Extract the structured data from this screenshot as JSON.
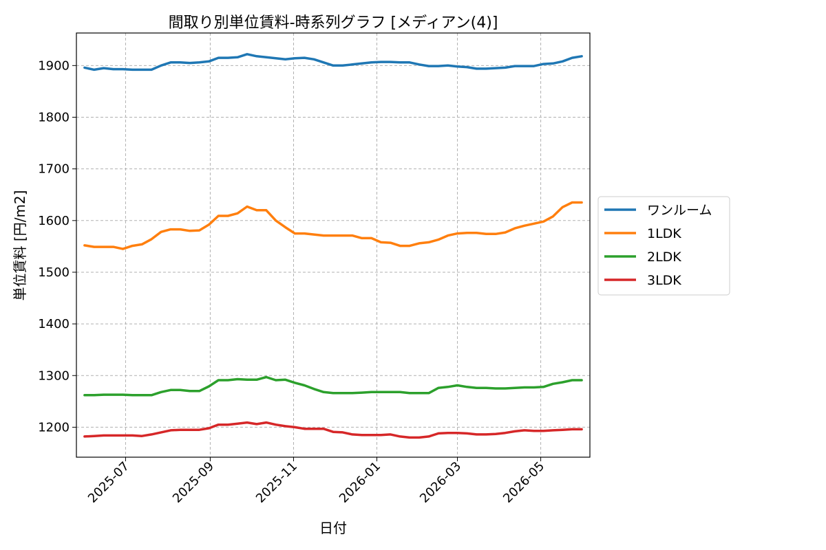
{
  "chart_data": {
    "type": "line",
    "title": "間取り別単位賃料-時系列グラフ [メディアン(4)]",
    "xlabel": "日付",
    "ylabel": "単位賃料 [円/m2]",
    "x": [
      "2025-06-01",
      "2025-06-08",
      "2025-06-15",
      "2025-06-22",
      "2025-06-29",
      "2025-07-06",
      "2025-07-13",
      "2025-07-20",
      "2025-07-27",
      "2025-08-03",
      "2025-08-10",
      "2025-08-17",
      "2025-08-24",
      "2025-08-31",
      "2025-09-07",
      "2025-09-14",
      "2025-09-21",
      "2025-09-28",
      "2025-10-05",
      "2025-10-12",
      "2025-10-19",
      "2025-10-26",
      "2025-11-02",
      "2025-11-09",
      "2025-11-16",
      "2025-11-23",
      "2025-11-30",
      "2025-12-07",
      "2025-12-14",
      "2025-12-21",
      "2025-12-28",
      "2026-01-04",
      "2026-01-11",
      "2026-01-18",
      "2026-01-25",
      "2026-02-01",
      "2026-02-08",
      "2026-02-15",
      "2026-02-22",
      "2026-03-01",
      "2026-03-08",
      "2026-03-15",
      "2026-03-22",
      "2026-03-29",
      "2026-04-05",
      "2026-04-12",
      "2026-04-19",
      "2026-04-26",
      "2026-05-03",
      "2026-05-10",
      "2026-05-17",
      "2026-05-24",
      "2026-05-31"
    ],
    "ylim": [
      1142,
      1963
    ],
    "yticks": [
      1200,
      1300,
      1400,
      1500,
      1600,
      1700,
      1800,
      1900
    ],
    "xticks": [
      "2025-07",
      "2025-09",
      "2025-11",
      "2026-01",
      "2026-03",
      "2026-05"
    ],
    "grid": true,
    "legend_position": "outside-right",
    "series": [
      {
        "name": "ワンルーム",
        "color": "#1f77b4",
        "values": [
          1896,
          1892,
          1895,
          1893,
          1893,
          1892,
          1892,
          1892,
          1900,
          1906,
          1906,
          1905,
          1906,
          1908,
          1915,
          1915,
          1916,
          1922,
          1918,
          1916,
          1914,
          1912,
          1914,
          1915,
          1912,
          1906,
          1900,
          1900,
          1902,
          1904,
          1906,
          1907,
          1907,
          1906,
          1906,
          1902,
          1899,
          1899,
          1900,
          1898,
          1897,
          1894,
          1894,
          1895,
          1896,
          1899,
          1899,
          1899,
          1903,
          1904,
          1908,
          1915,
          1918
        ]
      },
      {
        "name": "1LDK",
        "color": "#ff7f0e",
        "values": [
          1552,
          1549,
          1549,
          1549,
          1545,
          1551,
          1554,
          1564,
          1578,
          1583,
          1583,
          1580,
          1581,
          1592,
          1609,
          1609,
          1614,
          1627,
          1620,
          1620,
          1600,
          1587,
          1575,
          1575,
          1573,
          1571,
          1571,
          1571,
          1571,
          1566,
          1566,
          1558,
          1557,
          1551,
          1551,
          1556,
          1558,
          1563,
          1571,
          1575,
          1576,
          1576,
          1574,
          1574,
          1577,
          1585,
          1590,
          1594,
          1598,
          1608,
          1626,
          1635,
          1635
        ]
      },
      {
        "name": "2LDK",
        "color": "#2ca02c",
        "values": [
          1262,
          1262,
          1263,
          1263,
          1263,
          1262,
          1262,
          1262,
          1268,
          1272,
          1272,
          1270,
          1270,
          1279,
          1291,
          1291,
          1293,
          1292,
          1292,
          1297,
          1291,
          1292,
          1286,
          1281,
          1274,
          1268,
          1266,
          1266,
          1266,
          1267,
          1268,
          1268,
          1268,
          1268,
          1266,
          1266,
          1266,
          1276,
          1278,
          1281,
          1278,
          1276,
          1276,
          1275,
          1275,
          1276,
          1277,
          1277,
          1278,
          1284,
          1287,
          1291,
          1291
        ]
      },
      {
        "name": "3LDK",
        "color": "#d62728",
        "values": [
          1182,
          1183,
          1184,
          1184,
          1184,
          1184,
          1183,
          1186,
          1190,
          1194,
          1195,
          1195,
          1195,
          1198,
          1205,
          1205,
          1207,
          1209,
          1206,
          1209,
          1205,
          1202,
          1200,
          1197,
          1197,
          1197,
          1191,
          1190,
          1186,
          1185,
          1185,
          1185,
          1186,
          1182,
          1180,
          1180,
          1182,
          1188,
          1189,
          1189,
          1188,
          1186,
          1186,
          1187,
          1189,
          1192,
          1194,
          1193,
          1193,
          1194,
          1195,
          1196,
          1196
        ]
      }
    ]
  }
}
